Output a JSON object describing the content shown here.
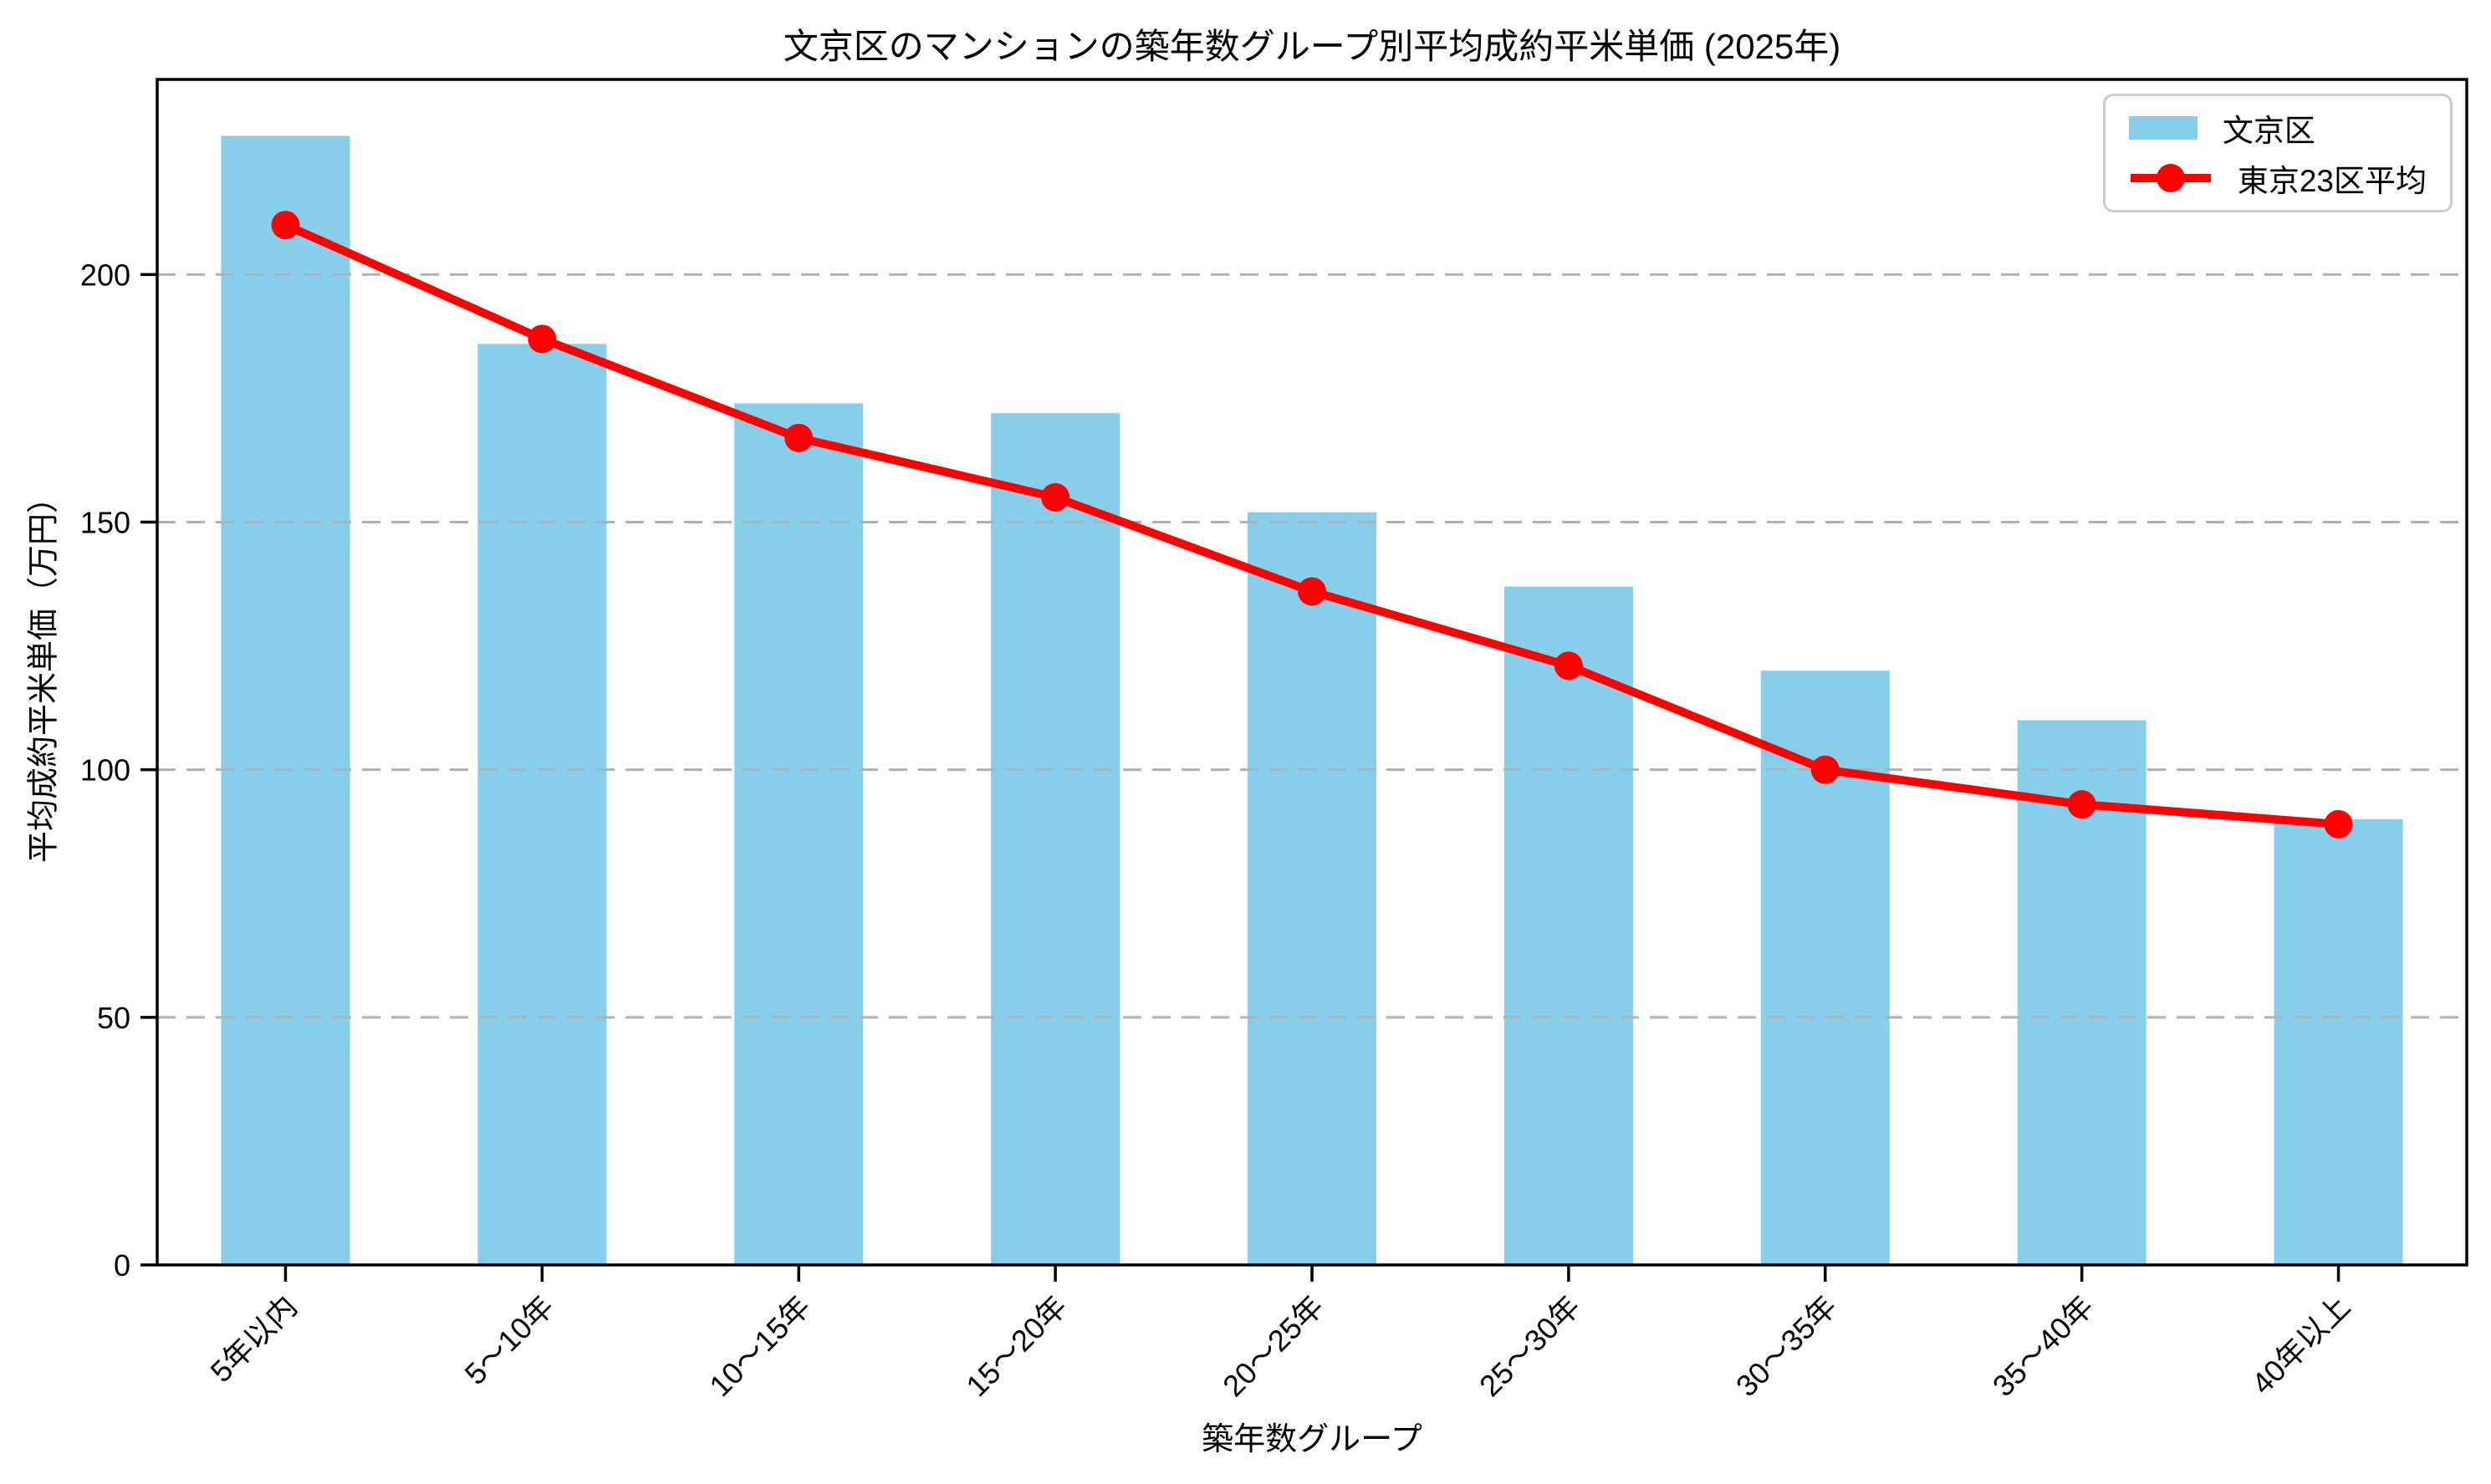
{
  "chart_data": {
    "type": "bar",
    "title": "文京区のマンションの築年数グループ別平均成約平米単価 (2025年)",
    "xlabel": "築年数グループ",
    "ylabel": "平均成約平米単価（万円）",
    "categories": [
      "5年以内",
      "5〜10年",
      "10〜15年",
      "15〜20年",
      "20〜25年",
      "25〜30年",
      "30〜35年",
      "35〜40年",
      "40年以上"
    ],
    "series": [
      {
        "name": "文京区",
        "type": "bar",
        "color": "#87CEEB",
        "values": [
          228,
          186,
          174,
          172,
          152,
          137,
          120,
          110,
          90
        ]
      },
      {
        "name": "東京23区平均",
        "type": "line",
        "color": "#FF0000",
        "values": [
          210,
          187,
          167,
          155,
          136,
          121,
          100,
          93,
          89
        ]
      }
    ],
    "yticks": [
      0,
      50,
      100,
      150,
      200
    ],
    "ylim": [
      0,
      239.4
    ],
    "grid": "horizontal-dashed",
    "grid_color": "#b0b0b0",
    "legend_position": "upper-right",
    "legend": [
      "文京区",
      "東京23区平均"
    ]
  }
}
